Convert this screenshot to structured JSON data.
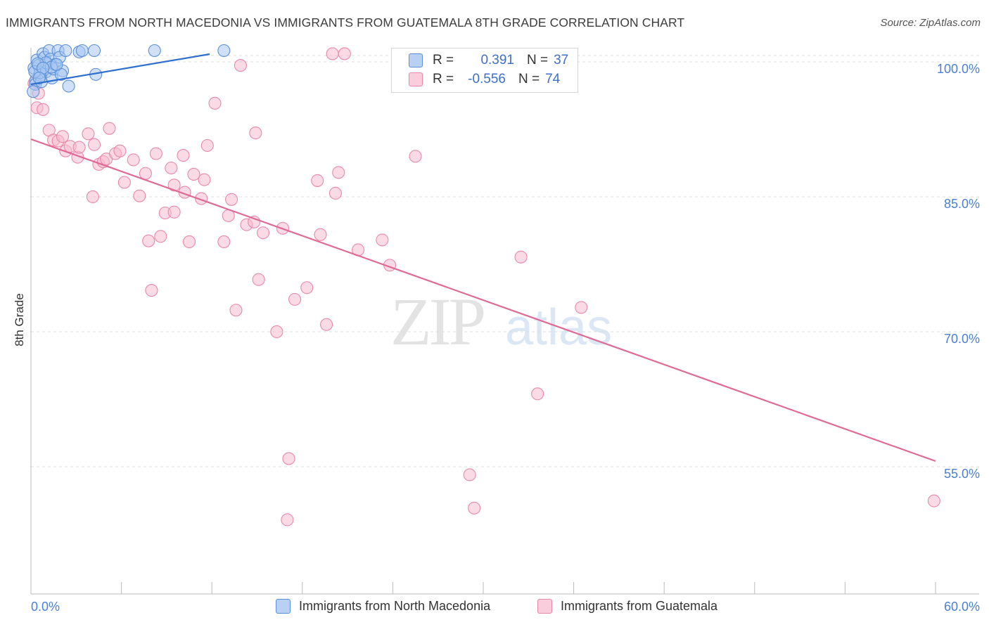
{
  "header": {
    "title": "IMMIGRANTS FROM NORTH MACEDONIA VS IMMIGRANTS FROM GUATEMALA 8TH GRADE CORRELATION CHART",
    "source": "Source: ZipAtlas.com"
  },
  "legend": {
    "rows": [
      {
        "r_label": "R =",
        "r_value": "0.391",
        "n_label": "N =",
        "n_value": "37"
      },
      {
        "r_label": "R =",
        "r_value": "-0.556",
        "n_label": "N =",
        "n_value": "74"
      }
    ]
  },
  "watermark": {
    "zip": "ZIP",
    "atlas": "atlas"
  },
  "colors": {
    "blue_fill": "#a8c6f0",
    "blue_stroke": "#5b8fd9",
    "blue_line": "#2f6fd0",
    "pink_fill": "#f6bccd",
    "pink_stroke": "#e889a8",
    "pink_line": "#e06a96",
    "tick_label": "#4a7fd6",
    "grid": "#dcdcdc"
  },
  "chart_data": {
    "type": "scatter",
    "title": "IMMIGRANTS FROM NORTH MACEDONIA VS IMMIGRANTS FROM GUATEMALA 8TH GRADE CORRELATION CHART",
    "xlabel": "",
    "ylabel": "8th Grade",
    "xlim": [
      0,
      60
    ],
    "ylim": [
      40,
      100
    ],
    "x_tick_labels": [
      "0.0%",
      "60.0%"
    ],
    "y_ticks": [
      55,
      70,
      85,
      100
    ],
    "y_tick_labels": [
      "55.0%",
      "70.0%",
      "85.0%",
      "100.0%"
    ],
    "grid": "horizontal dashed",
    "legend_position": "top-center",
    "series": [
      {
        "name": "Immigrants from North Macedonia",
        "color": "blue",
        "trend": {
          "x": [
            0.0,
            12.0
          ],
          "y": [
            98.0,
            101.5
          ]
        },
        "points": [
          [
            0.2,
            98.6
          ],
          [
            0.3,
            97.2
          ],
          [
            0.3,
            96.8
          ],
          [
            0.4,
            99.5
          ],
          [
            0.5,
            98.9
          ],
          [
            0.6,
            97.8
          ],
          [
            0.7,
            97.1
          ],
          [
            0.8,
            100.2
          ],
          [
            0.9,
            99.8
          ],
          [
            1.0,
            98.2
          ],
          [
            1.1,
            99.1
          ],
          [
            1.2,
            101.5
          ],
          [
            1.3,
            99.6
          ],
          [
            1.4,
            97.5
          ],
          [
            1.5,
            98.5
          ],
          [
            1.6,
            99.0
          ],
          [
            1.8,
            101.2
          ],
          [
            1.9,
            99.8
          ],
          [
            2.1,
            98.3
          ],
          [
            2.3,
            101.4
          ],
          [
            2.5,
            96.6
          ],
          [
            3.2,
            100.4
          ],
          [
            3.4,
            100.6
          ],
          [
            4.2,
            102.2
          ],
          [
            4.3,
            97.9
          ],
          [
            8.2,
            102.1
          ],
          [
            12.8,
            102.1
          ],
          [
            0.15,
            96.0
          ],
          [
            0.6,
            98.1
          ],
          [
            1.0,
            99.2
          ],
          [
            1.35,
            98.7
          ],
          [
            2.0,
            97.9
          ],
          [
            0.25,
            98.2
          ],
          [
            0.45,
            99.1
          ],
          [
            0.8,
            98.6
          ],
          [
            1.7,
            99.0
          ],
          [
            0.55,
            97.5
          ]
        ]
      },
      {
        "name": "Immigrants from Guatemala",
        "color": "pink",
        "trend": {
          "x": [
            0.0,
            60.0
          ],
          "y": [
            90.8,
            54.8
          ]
        },
        "points": [
          [
            0.2,
            96.9
          ],
          [
            0.4,
            94.2
          ],
          [
            0.5,
            95.8
          ],
          [
            0.8,
            94.0
          ],
          [
            1.2,
            91.7
          ],
          [
            1.5,
            90.6
          ],
          [
            1.8,
            90.5
          ],
          [
            2.1,
            91.0
          ],
          [
            2.3,
            89.4
          ],
          [
            2.6,
            89.9
          ],
          [
            3.1,
            88.7
          ],
          [
            3.2,
            89.8
          ],
          [
            3.8,
            91.3
          ],
          [
            4.1,
            84.3
          ],
          [
            4.2,
            90.1
          ],
          [
            4.5,
            87.9
          ],
          [
            4.8,
            88.2
          ],
          [
            5.0,
            88.5
          ],
          [
            5.2,
            91.9
          ],
          [
            5.6,
            89.1
          ],
          [
            5.9,
            89.4
          ],
          [
            6.2,
            85.9
          ],
          [
            6.8,
            88.4
          ],
          [
            7.2,
            84.4
          ],
          [
            7.6,
            86.9
          ],
          [
            7.8,
            79.4
          ],
          [
            8.0,
            73.9
          ],
          [
            8.3,
            89.1
          ],
          [
            8.6,
            79.9
          ],
          [
            8.9,
            82.5
          ],
          [
            9.3,
            87.5
          ],
          [
            9.5,
            82.6
          ],
          [
            9.5,
            85.6
          ],
          [
            10.1,
            88.9
          ],
          [
            10.2,
            84.8
          ],
          [
            10.5,
            79.3
          ],
          [
            10.8,
            86.8
          ],
          [
            11.3,
            84.1
          ],
          [
            11.5,
            86.2
          ],
          [
            11.7,
            90.0
          ],
          [
            12.2,
            94.7
          ],
          [
            12.8,
            79.3
          ],
          [
            13.1,
            82.2
          ],
          [
            13.3,
            84.0
          ],
          [
            13.6,
            71.7
          ],
          [
            13.9,
            98.9
          ],
          [
            14.3,
            81.2
          ],
          [
            14.8,
            81.5
          ],
          [
            14.9,
            91.4
          ],
          [
            15.1,
            75.1
          ],
          [
            15.4,
            80.3
          ],
          [
            16.3,
            69.3
          ],
          [
            16.7,
            80.8
          ],
          [
            17.0,
            48.4
          ],
          [
            17.1,
            55.2
          ],
          [
            17.5,
            72.9
          ],
          [
            18.3,
            74.2
          ],
          [
            19.0,
            86.1
          ],
          [
            19.2,
            80.1
          ],
          [
            19.6,
            70.1
          ],
          [
            20.0,
            100.2
          ],
          [
            20.2,
            84.7
          ],
          [
            20.4,
            87.0
          ],
          [
            20.8,
            100.2
          ],
          [
            21.7,
            78.4
          ],
          [
            23.3,
            79.5
          ],
          [
            23.8,
            76.7
          ],
          [
            25.5,
            88.8
          ],
          [
            29.1,
            53.4
          ],
          [
            29.4,
            49.7
          ],
          [
            32.5,
            77.6
          ],
          [
            33.6,
            62.4
          ],
          [
            36.5,
            72.0
          ],
          [
            59.9,
            50.5
          ]
        ]
      }
    ]
  }
}
